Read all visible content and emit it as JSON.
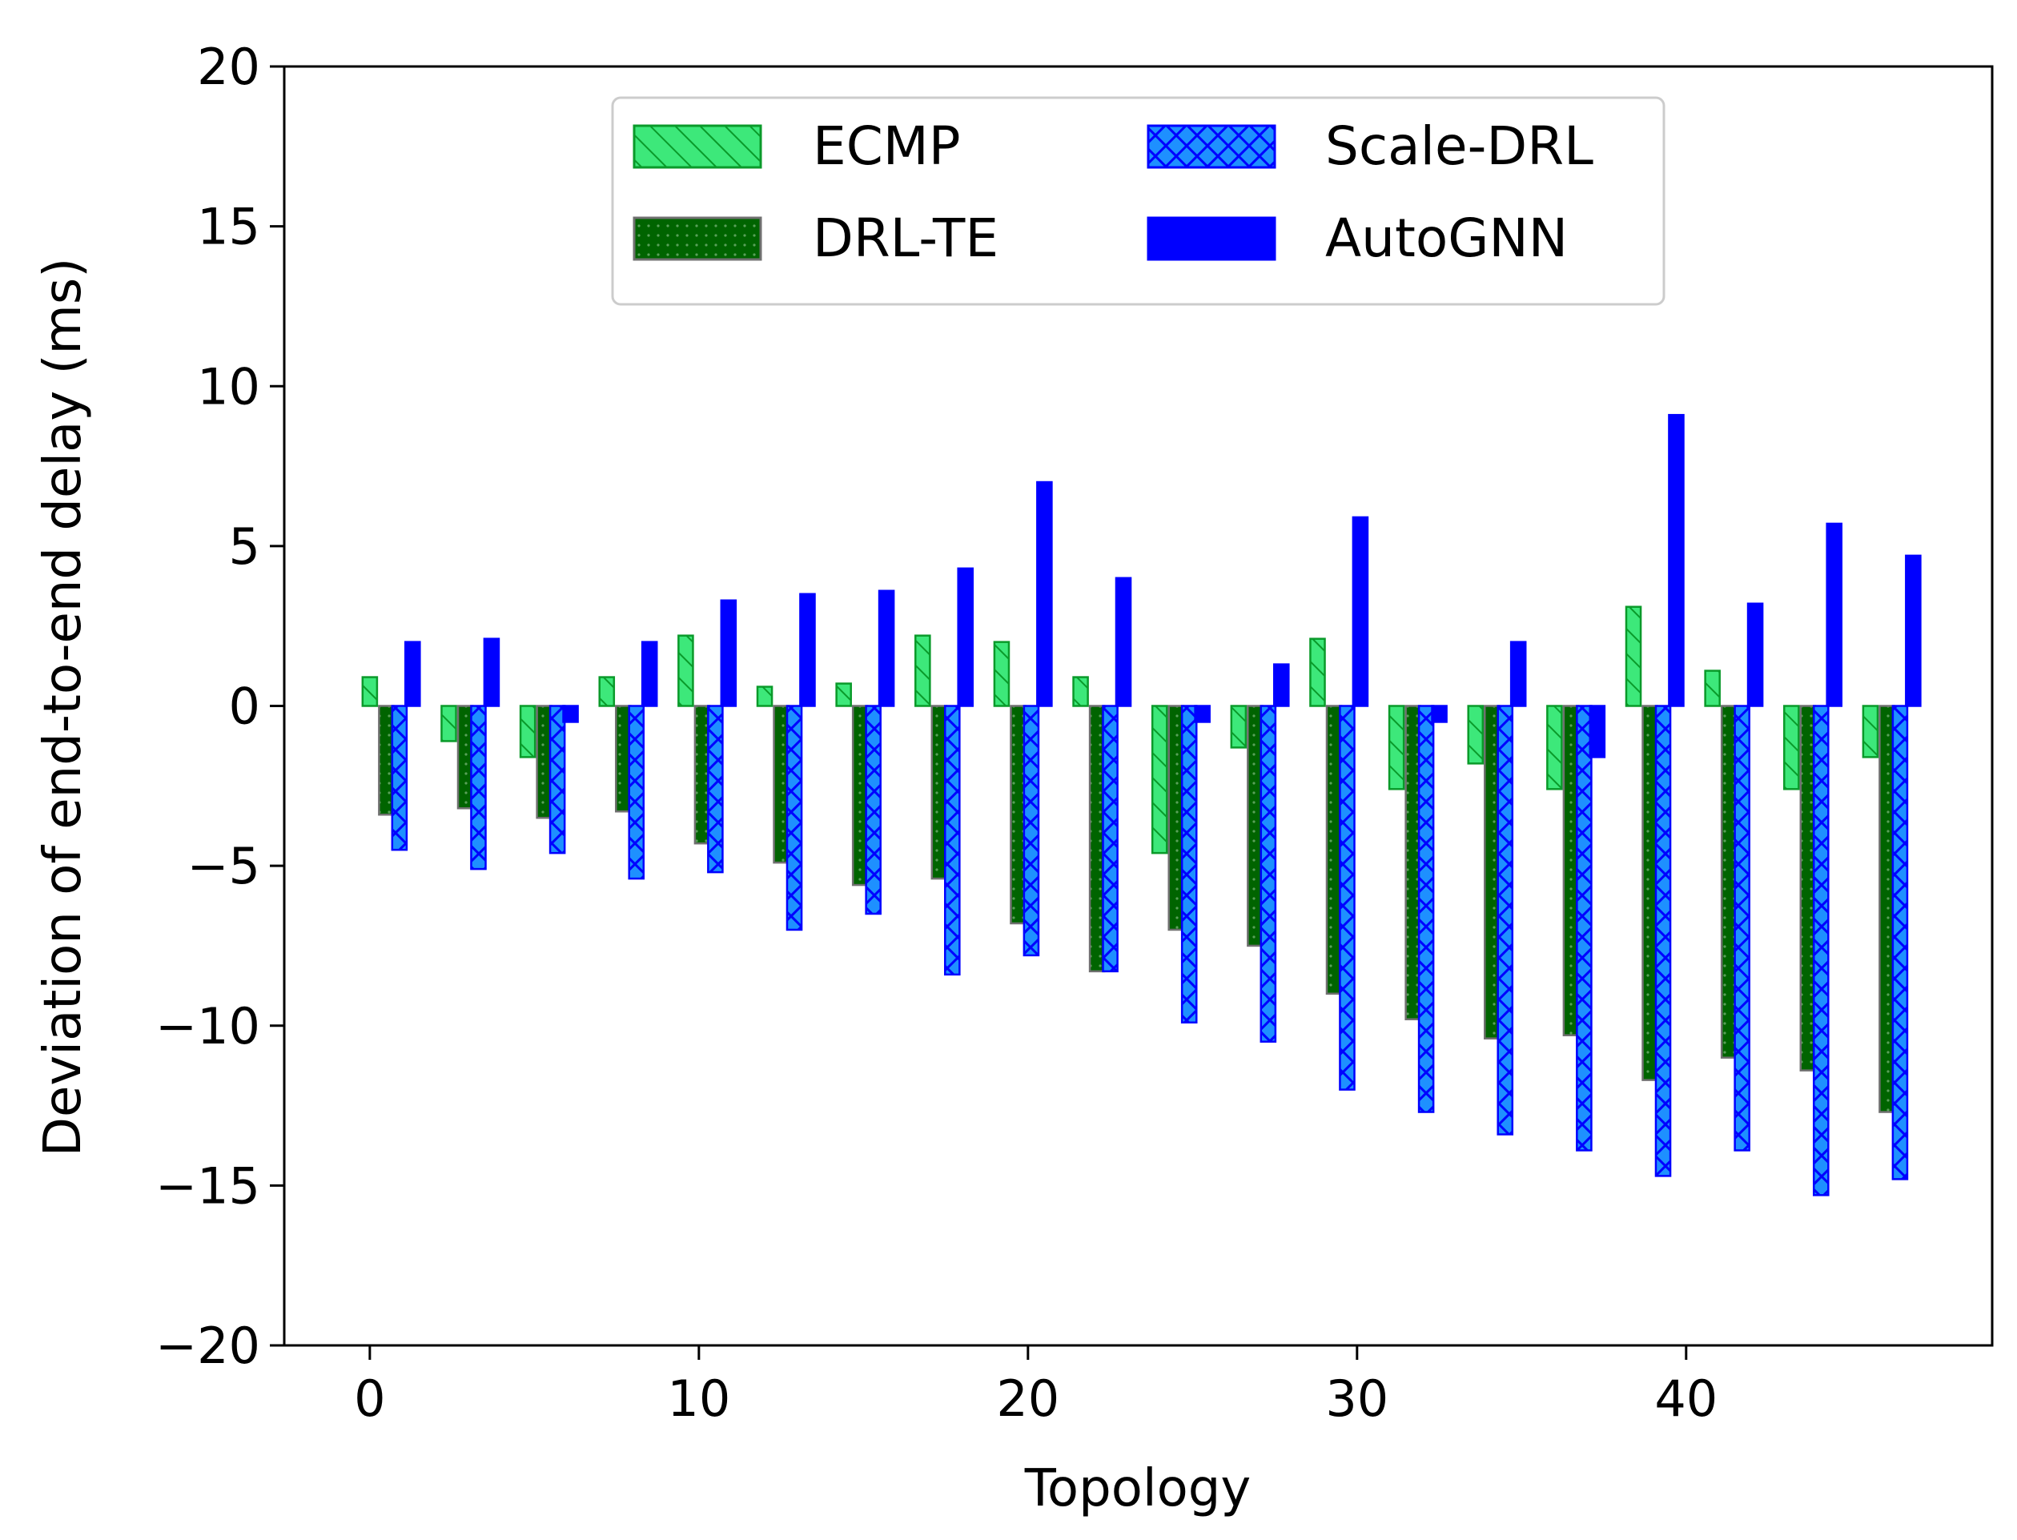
{
  "chart_data": {
    "type": "bar",
    "title": "",
    "xlabel": "Topology",
    "ylabel": "Deviation of end-to-end delay (ms)",
    "xlim": [
      -2.6,
      49.3
    ],
    "ylim": [
      -20,
      20
    ],
    "xticks": [
      0,
      10,
      20,
      30,
      40
    ],
    "yticks": [
      -20,
      -15,
      -10,
      -5,
      0,
      5,
      10,
      15,
      20
    ],
    "ytick_labels": [
      "−20",
      "−15",
      "−10",
      "−5",
      "0",
      "5",
      "10",
      "15",
      "20"
    ],
    "grid": false,
    "legend_position": "top-center",
    "categories": [
      0,
      2.4,
      4.8,
      7.2,
      9.6,
      12.0,
      14.4,
      16.8,
      19.2,
      21.6,
      24.0,
      26.4,
      28.8,
      31.2,
      33.6,
      36.0,
      38.4,
      40.8,
      43.2,
      45.6
    ],
    "series": [
      {
        "name": "ECMP",
        "color": "#3de87a",
        "edge": "#0a9a2a",
        "hatch": "diag",
        "values": [
          0.9,
          -1.1,
          -1.6,
          0.9,
          2.2,
          0.6,
          0.7,
          2.2,
          2.0,
          0.9,
          -4.6,
          -1.3,
          2.1,
          -2.6,
          -1.8,
          -2.6,
          3.1,
          1.1,
          -2.6,
          -1.6
        ]
      },
      {
        "name": "DRL-TE",
        "color": "#006400",
        "edge": "#707070",
        "hatch": "dots",
        "values": [
          -3.4,
          -3.2,
          -3.5,
          -3.3,
          -4.3,
          -4.9,
          -5.6,
          -5.4,
          -6.8,
          -8.3,
          -7.0,
          -7.5,
          -9.0,
          -9.8,
          -10.4,
          -10.3,
          -11.7,
          -11.0,
          -11.4,
          -12.7
        ]
      },
      {
        "name": "Scale-DRL",
        "color": "#1e90ff",
        "edge": "#0000ff",
        "hatch": "cross",
        "values": [
          -4.5,
          -5.1,
          -4.6,
          -5.4,
          -5.2,
          -7.0,
          -6.5,
          -8.4,
          -7.8,
          -8.3,
          -9.9,
          -10.5,
          -12.0,
          -12.7,
          -13.4,
          -13.9,
          -14.7,
          -13.9,
          -15.3,
          -14.8
        ]
      },
      {
        "name": "AutoGNN",
        "color": "#0000ff",
        "edge": "#0000ff",
        "hatch": "none",
        "values": [
          2.0,
          2.1,
          -0.5,
          2.0,
          3.3,
          3.5,
          3.6,
          4.3,
          7.0,
          4.0,
          -0.5,
          1.3,
          5.9,
          -0.5,
          2.0,
          -1.6,
          9.1,
          3.2,
          5.7,
          4.7
        ]
      }
    ]
  }
}
